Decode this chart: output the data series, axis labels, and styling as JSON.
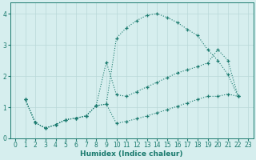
{
  "xlabel": "Humidex (Indice chaleur)",
  "background_color": "#d6eeee",
  "grid_color": "#b8d8d8",
  "line_color": "#1a7a6e",
  "xlim": [
    -0.5,
    23.5
  ],
  "ylim": [
    0,
    4.35
  ],
  "yticks": [
    0,
    1,
    2,
    3,
    4
  ],
  "xticks": [
    0,
    1,
    2,
    3,
    4,
    5,
    6,
    7,
    8,
    9,
    10,
    11,
    12,
    13,
    14,
    15,
    16,
    17,
    18,
    19,
    20,
    21,
    22,
    23
  ],
  "curve1_x": [
    1,
    2,
    3,
    4,
    5,
    6,
    7,
    8,
    9,
    10,
    11,
    12,
    13,
    14,
    15,
    16,
    17,
    18,
    19,
    20,
    21,
    22
  ],
  "curve1_y": [
    1.25,
    0.5,
    0.33,
    0.44,
    0.6,
    0.65,
    0.72,
    1.05,
    1.1,
    3.22,
    3.55,
    3.78,
    3.95,
    4.0,
    3.88,
    3.72,
    3.5,
    3.3,
    2.85,
    2.5,
    2.05,
    1.35
  ],
  "curve2_x": [
    1,
    2,
    3,
    4,
    5,
    6,
    7,
    8,
    9,
    10,
    11,
    12,
    13,
    14,
    15,
    16,
    17,
    18,
    19,
    20,
    21,
    22
  ],
  "curve2_y": [
    1.25,
    0.5,
    0.33,
    0.44,
    0.6,
    0.65,
    0.72,
    1.05,
    2.45,
    1.4,
    1.35,
    1.5,
    1.65,
    1.8,
    1.95,
    2.1,
    2.2,
    2.3,
    2.42,
    2.85,
    2.5,
    1.35
  ],
  "curve3_x": [
    1,
    2,
    3,
    4,
    5,
    6,
    7,
    8,
    9,
    10,
    11,
    12,
    13,
    14,
    15,
    16,
    17,
    18,
    19,
    20,
    21,
    22
  ],
  "curve3_y": [
    1.25,
    0.5,
    0.33,
    0.44,
    0.6,
    0.65,
    0.72,
    1.05,
    1.1,
    0.48,
    0.55,
    0.63,
    0.72,
    0.82,
    0.92,
    1.03,
    1.14,
    1.25,
    1.35,
    1.35,
    1.42,
    1.35
  ]
}
